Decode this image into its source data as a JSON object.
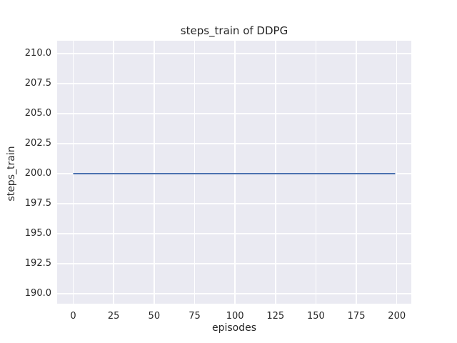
{
  "chart_data": {
    "type": "line",
    "title": "steps_train of DDPG",
    "xlabel": "episodes",
    "ylabel": "steps_train",
    "x_ticks": [
      0,
      25,
      50,
      75,
      100,
      125,
      150,
      175,
      200
    ],
    "x_tick_labels": [
      "0",
      "25",
      "50",
      "75",
      "100",
      "125",
      "150",
      "175",
      "200"
    ],
    "y_ticks": [
      210.0,
      207.5,
      205.0,
      202.5,
      200.0,
      197.5,
      195.0,
      192.5,
      190.0
    ],
    "y_tick_labels": [
      "210.0",
      "207.5",
      "205.0",
      "202.5",
      "200.0",
      "197.5",
      "195.0",
      "192.5",
      "190.0"
    ],
    "xlim": [
      -9.95,
      208.95
    ],
    "ylim": [
      189.17,
      211.07
    ],
    "grid": true,
    "legend_position": "none",
    "series": [
      {
        "name": "steps_train",
        "color": "#4c72b0",
        "line_width": 2,
        "points": [
          [
            0,
            200
          ],
          [
            199,
            200
          ]
        ]
      }
    ],
    "colors": {
      "figure_background": "#ffffff",
      "plot_background": "#eaeaf2",
      "gridline": "#ffffff",
      "text": "#262626",
      "line": "#4c72b0"
    }
  }
}
